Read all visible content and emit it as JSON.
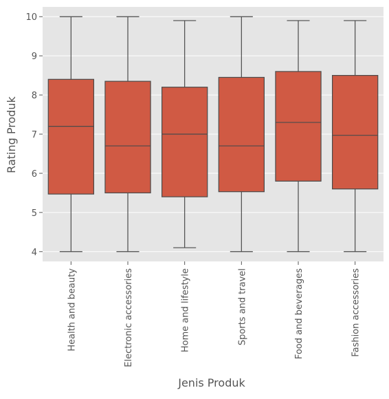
{
  "chart_data": {
    "type": "box",
    "xlabel": "Jenis Produk",
    "ylabel": "Rating Produk",
    "ylim": [
      3.75,
      10.25
    ],
    "yticks": [
      4,
      5,
      6,
      7,
      8,
      9,
      10
    ],
    "grid": true,
    "box_color": "#d05a44",
    "edge_color": "#4a4a4a",
    "plot_background": "#e5e5e5",
    "categories": [
      "Health and beauty",
      "Electronic accessories",
      "Home and lifestyle",
      "Sports and travel",
      "Food and beverages",
      "Fashion accessories"
    ],
    "boxes": [
      {
        "category": "Health and beauty",
        "min": 4.0,
        "q1": 5.47,
        "median": 7.2,
        "q3": 8.4,
        "max": 10.0
      },
      {
        "category": "Electronic accessories",
        "min": 4.0,
        "q1": 5.5,
        "median": 6.7,
        "q3": 8.35,
        "max": 10.0
      },
      {
        "category": "Home and lifestyle",
        "min": 4.1,
        "q1": 5.4,
        "median": 7.0,
        "q3": 8.2,
        "max": 9.9
      },
      {
        "category": "Sports and travel",
        "min": 4.0,
        "q1": 5.53,
        "median": 6.7,
        "q3": 8.45,
        "max": 10.0
      },
      {
        "category": "Food and beverages",
        "min": 4.0,
        "q1": 5.8,
        "median": 7.3,
        "q3": 8.6,
        "max": 9.9
      },
      {
        "category": "Fashion accessories",
        "min": 4.0,
        "q1": 5.6,
        "median": 6.97,
        "q3": 8.5,
        "max": 9.9
      }
    ]
  }
}
